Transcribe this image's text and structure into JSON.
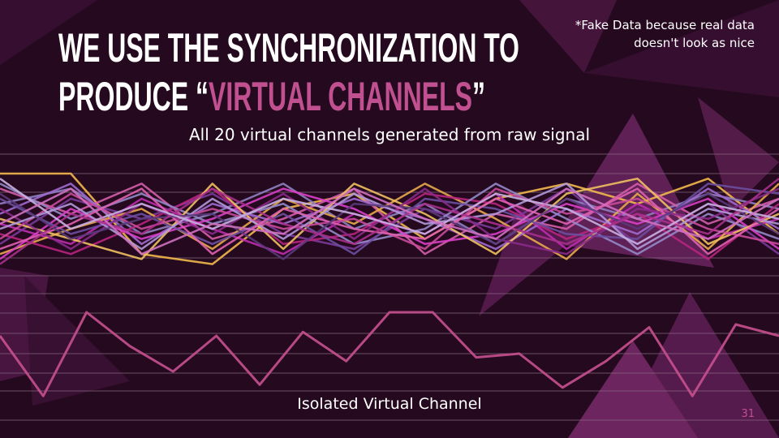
{
  "title": {
    "line1": "WE USE THE SYNCHRONIZATION TO",
    "line2_start": "PRODUCE “",
    "highlight": "VIRTUAL CHANNELS",
    "line2_end": "”"
  },
  "note": {
    "line1": "*Fake Data because real data",
    "line2": "doesn't look as nice"
  },
  "page_number": "31",
  "chart_data": [
    {
      "type": "line",
      "title": "All 20 virtual channels generated from raw signal",
      "ylim": [
        0,
        100
      ],
      "series": [
        {
          "color": "#f2b84b",
          "values": [
            100,
            100,
            20,
            10,
            65,
            80,
            35,
            75,
            90,
            70,
            95,
            40
          ]
        },
        {
          "color": "#8f7fc0",
          "values": [
            70,
            85,
            40,
            60,
            90,
            45,
            70,
            30,
            75,
            55,
            80,
            65
          ]
        },
        {
          "color": "#c02bb0",
          "values": [
            50,
            30,
            75,
            45,
            20,
            60,
            40,
            80,
            25,
            70,
            35,
            55
          ]
        },
        {
          "color": "#d45da8",
          "values": [
            85,
            60,
            90,
            35,
            55,
            85,
            20,
            60,
            45,
            90,
            50,
            75
          ]
        },
        {
          "color": "#7a3a9a",
          "values": [
            30,
            75,
            55,
            80,
            40,
            25,
            65,
            45,
            85,
            30,
            70,
            20
          ]
        },
        {
          "color": "#e8a84a",
          "values": [
            20,
            45,
            65,
            25,
            75,
            50,
            90,
            55,
            15,
            80,
            25,
            90
          ]
        },
        {
          "color": "#a06ad0",
          "values": [
            60,
            90,
            30,
            70,
            50,
            75,
            55,
            25,
            65,
            40,
            85,
            45
          ]
        },
        {
          "color": "#b8237e",
          "values": [
            40,
            20,
            50,
            85,
            30,
            40,
            80,
            70,
            35,
            60,
            15,
            70
          ]
        },
        {
          "color": "#9488c8",
          "values": [
            90,
            55,
            80,
            50,
            70,
            30,
            45,
            90,
            55,
            20,
            60,
            35
          ]
        },
        {
          "color": "#d93fc8",
          "values": [
            15,
            65,
            35,
            55,
            85,
            65,
            30,
            40,
            70,
            50,
            75,
            25
          ]
        },
        {
          "color": "#f0c060",
          "values": [
            55,
            35,
            15,
            90,
            25,
            90,
            60,
            20,
            80,
            95,
            30,
            60
          ]
        },
        {
          "color": "#6b4fa0",
          "values": [
            75,
            40,
            60,
            30,
            60,
            20,
            75,
            65,
            40,
            35,
            90,
            80
          ]
        },
        {
          "color": "#c84a9a",
          "values": [
            35,
            80,
            45,
            65,
            45,
            55,
            25,
            85,
            60,
            75,
            45,
            30
          ]
        },
        {
          "color": "#8a2a8a",
          "values": [
            65,
            25,
            70,
            40,
            80,
            35,
            85,
            35,
            20,
            65,
            55,
            85
          ]
        },
        {
          "color": "#b098d8",
          "values": [
            45,
            70,
            25,
            75,
            35,
            80,
            50,
            60,
            90,
            25,
            65,
            50
          ]
        },
        {
          "color": "#e060b0",
          "values": [
            25,
            50,
            85,
            20,
            65,
            45,
            35,
            75,
            50,
            85,
            20,
            65
          ]
        },
        {
          "color": "#5a3a7a",
          "values": [
            80,
            35,
            55,
            60,
            15,
            70,
            65,
            30,
            75,
            45,
            80,
            40
          ]
        },
        {
          "color": "#a8308c",
          "values": [
            10,
            60,
            40,
            85,
            50,
            30,
            70,
            50,
            30,
            60,
            40,
            95
          ]
        },
        {
          "color": "#c8b0e0",
          "values": [
            95,
            45,
            70,
            45,
            75,
            60,
            40,
            80,
            65,
            30,
            70,
            55
          ]
        },
        {
          "color": "#d070c0",
          "values": [
            50,
            85,
            20,
            50,
            40,
            85,
            55,
            35,
            85,
            55,
            35,
            75
          ]
        }
      ]
    },
    {
      "type": "line",
      "title": "Isolated Virtual Channel",
      "ylim": [
        0,
        100
      ],
      "color": "#c8508f",
      "values": [
        69,
        5,
        94,
        58,
        31,
        69,
        17,
        73,
        42,
        94,
        94,
        46,
        50,
        14,
        42,
        78,
        5,
        81,
        69
      ]
    }
  ]
}
